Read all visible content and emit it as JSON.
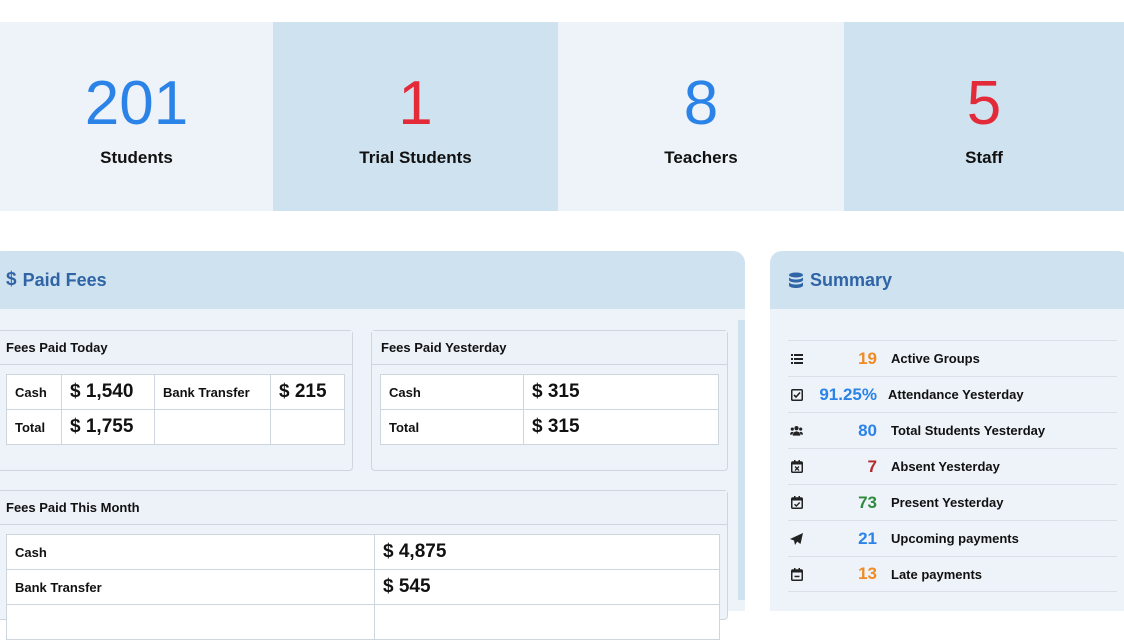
{
  "stats": [
    {
      "value": "201",
      "label": "Students",
      "color": "#2b83e8"
    },
    {
      "value": "1",
      "label": "Trial Students",
      "color": "#e32a39"
    },
    {
      "value": "8",
      "label": "Teachers",
      "color": "#2b83e8"
    },
    {
      "value": "5",
      "label": "Staff",
      "color": "#e32a39"
    }
  ],
  "fees": {
    "title": "Paid Fees",
    "today": {
      "title": "Fees Paid Today",
      "cash_label": "Cash",
      "cash_value": "$ 1,540",
      "bank_label": "Bank Transfer",
      "bank_value": "$ 215",
      "total_label": "Total",
      "total_value": "$ 1,755"
    },
    "yesterday": {
      "title": "Fees Paid Yesterday",
      "cash_label": "Cash",
      "cash_value": "$ 315",
      "total_label": "Total",
      "total_value": "$ 315"
    },
    "month": {
      "title": "Fees Paid This Month",
      "cash_label": "Cash",
      "cash_value": "$ 4,875",
      "bank_label": "Bank Transfer",
      "bank_value": "$ 545"
    }
  },
  "summary": {
    "title": "Summary",
    "items": [
      {
        "value": "19",
        "label": "Active Groups",
        "color": "#f08a24",
        "icon": "list-icon"
      },
      {
        "value": "91.25%",
        "label": "Attendance Yesterday",
        "color": "#2b83e8",
        "icon": "checkbox-icon"
      },
      {
        "value": "80",
        "label": "Total Students Yesterday",
        "color": "#2b83e8",
        "icon": "users-icon"
      },
      {
        "value": "7",
        "label": "Absent Yesterday",
        "color": "#b22a2a",
        "icon": "calendar-x-icon"
      },
      {
        "value": "73",
        "label": "Present Yesterday",
        "color": "#2e8b3e",
        "icon": "calendar-check-icon"
      },
      {
        "value": "21",
        "label": "Upcoming payments",
        "color": "#2b83e8",
        "icon": "paper-plane-icon"
      },
      {
        "value": "13",
        "label": "Late payments",
        "color": "#f08a24",
        "icon": "calendar-minus-icon"
      }
    ]
  }
}
